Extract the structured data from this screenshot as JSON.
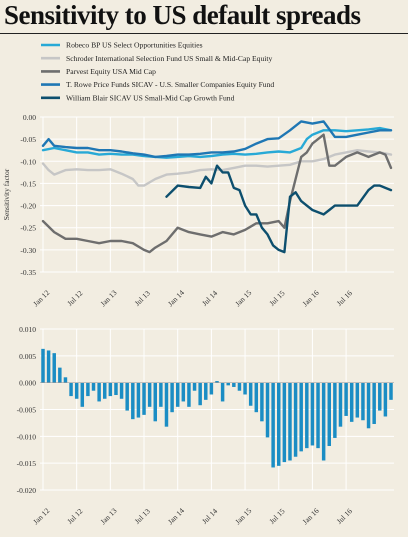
{
  "title": "Sensitivity to US default spreads",
  "colors": {
    "background": "#f2ede1",
    "grid": "#ffffff",
    "robeco": "#27a9d6",
    "schroder": "#c6c6c6",
    "parvest": "#6e6e6e",
    "trowe": "#1f77b4",
    "blair": "#0d4f6e",
    "bars": "#1b8dc4"
  },
  "chart_data": [
    {
      "type": "line",
      "ylabel": "Sensitivity factor",
      "ylim": [
        -0.35,
        0.0
      ],
      "yticks": [
        "0.00",
        "-0.05",
        "-0.10",
        "-0.15",
        "-0.20",
        "-0.25",
        "-0.30",
        "-0.35"
      ],
      "xticks": [
        "Jan 12",
        "Jul 12",
        "Jan 13",
        "Jul 13",
        "Jan 14",
        "Jul 14",
        "Jan 15",
        "Jul 15",
        "Jan 16",
        "Jul 16"
      ],
      "grid": true,
      "legend_position": "top-left",
      "series": [
        {
          "name": "Robeco BP US Select Opportunities Equities",
          "color_key": "robeco",
          "x": [
            0,
            2,
            4,
            6,
            8,
            10,
            12,
            14,
            16,
            18,
            20,
            22,
            24,
            26,
            28,
            30,
            32,
            34,
            36,
            38,
            40,
            42,
            44,
            46,
            47,
            48,
            50,
            52,
            54,
            56,
            58,
            60,
            62
          ],
          "y": [
            -0.075,
            -0.07,
            -0.075,
            -0.08,
            -0.08,
            -0.085,
            -0.083,
            -0.085,
            -0.085,
            -0.088,
            -0.09,
            -0.092,
            -0.09,
            -0.088,
            -0.09,
            -0.088,
            -0.085,
            -0.083,
            -0.085,
            -0.083,
            -0.08,
            -0.078,
            -0.08,
            -0.07,
            -0.05,
            -0.04,
            -0.03,
            -0.03,
            -0.032,
            -0.03,
            -0.028,
            -0.025,
            -0.03
          ]
        },
        {
          "name": "Schroder International Selection Fund US Small & Mid-Cap Equity",
          "color_key": "schroder",
          "x": [
            0,
            1,
            2,
            4,
            6,
            8,
            10,
            12,
            14,
            16,
            17,
            18,
            20,
            22,
            24,
            26,
            28,
            30,
            32,
            34,
            36,
            38,
            40,
            42,
            44,
            46,
            48,
            50,
            52,
            54,
            56,
            58,
            60,
            62
          ],
          "y": [
            -0.105,
            -0.12,
            -0.13,
            -0.12,
            -0.118,
            -0.12,
            -0.12,
            -0.118,
            -0.128,
            -0.14,
            -0.155,
            -0.155,
            -0.14,
            -0.13,
            -0.128,
            -0.125,
            -0.12,
            -0.118,
            -0.12,
            -0.115,
            -0.11,
            -0.11,
            -0.112,
            -0.11,
            -0.108,
            -0.1,
            -0.1,
            -0.095,
            -0.085,
            -0.08,
            -0.075,
            -0.078,
            -0.08,
            -0.085
          ]
        },
        {
          "name": "Parvest Equity USA Mid Cap",
          "color_key": "parvest",
          "x": [
            0,
            2,
            4,
            6,
            8,
            10,
            12,
            14,
            16,
            18,
            19,
            20,
            22,
            24,
            26,
            28,
            30,
            32,
            34,
            36,
            38,
            40,
            42,
            43,
            44,
            45,
            46,
            47,
            48,
            50,
            51,
            52,
            54,
            56,
            58,
            60,
            61,
            62
          ],
          "y": [
            -0.235,
            -0.26,
            -0.275,
            -0.275,
            -0.28,
            -0.285,
            -0.28,
            -0.28,
            -0.285,
            -0.3,
            -0.305,
            -0.295,
            -0.28,
            -0.25,
            -0.26,
            -0.265,
            -0.27,
            -0.26,
            -0.265,
            -0.255,
            -0.24,
            -0.24,
            -0.235,
            -0.25,
            -0.19,
            -0.14,
            -0.09,
            -0.08,
            -0.06,
            -0.04,
            -0.11,
            -0.11,
            -0.09,
            -0.08,
            -0.09,
            -0.08,
            -0.085,
            -0.115
          ]
        },
        {
          "name": "T. Rowe Price Funds SICAV - U.S. Smaller Companies Equity Fund",
          "color_key": "trowe",
          "x": [
            0,
            1,
            2,
            4,
            6,
            8,
            10,
            12,
            14,
            16,
            18,
            20,
            22,
            24,
            26,
            28,
            30,
            32,
            34,
            36,
            38,
            40,
            42,
            44,
            46,
            48,
            50,
            52,
            54,
            56,
            58,
            60,
            62
          ],
          "y": [
            -0.065,
            -0.05,
            -0.065,
            -0.068,
            -0.07,
            -0.07,
            -0.075,
            -0.075,
            -0.078,
            -0.082,
            -0.085,
            -0.09,
            -0.088,
            -0.085,
            -0.085,
            -0.083,
            -0.08,
            -0.08,
            -0.078,
            -0.072,
            -0.06,
            -0.05,
            -0.048,
            -0.03,
            -0.01,
            -0.015,
            -0.01,
            -0.045,
            -0.045,
            -0.04,
            -0.035,
            -0.03,
            -0.03
          ]
        },
        {
          "name": "William Blair SICAV US Small-Mid Cap Growth Fund",
          "color_key": "blair",
          "x": [
            22,
            24,
            26,
            28,
            29,
            30,
            31,
            32,
            33,
            34,
            35,
            36,
            37,
            38,
            39,
            40,
            41,
            42,
            43,
            44,
            45,
            46,
            47,
            48,
            50,
            51,
            52,
            54,
            56,
            58,
            59,
            60,
            61,
            62
          ],
          "y": [
            -0.18,
            -0.155,
            -0.158,
            -0.16,
            -0.135,
            -0.15,
            -0.11,
            -0.125,
            -0.125,
            -0.16,
            -0.165,
            -0.2,
            -0.22,
            -0.22,
            -0.25,
            -0.265,
            -0.29,
            -0.3,
            -0.305,
            -0.18,
            -0.17,
            -0.19,
            -0.2,
            -0.21,
            -0.22,
            -0.21,
            -0.2,
            -0.2,
            -0.2,
            -0.165,
            -0.155,
            -0.155,
            -0.16,
            -0.165
          ]
        }
      ]
    },
    {
      "type": "bar",
      "ylim": [
        -0.02,
        0.01
      ],
      "yticks": [
        "0.010",
        "0.005",
        "0.000",
        "-0.005",
        "-0.010",
        "-0.015",
        "-0.020"
      ],
      "xticks": [
        "Jan 12",
        "Jul 12",
        "Jan 13",
        "Jul 13",
        "Jan 14",
        "Jul 14",
        "Jan 15",
        "Jul 15",
        "Jan 16",
        "Jul 16"
      ],
      "grid": true,
      "values": [
        0.0063,
        0.006,
        0.0055,
        0.0028,
        0.001,
        -0.0025,
        -0.003,
        -0.0045,
        -0.0025,
        -0.0015,
        -0.0035,
        -0.003,
        -0.0025,
        -0.0023,
        -0.003,
        -0.0052,
        -0.0068,
        -0.0065,
        -0.006,
        -0.0045,
        -0.0072,
        -0.0045,
        -0.0082,
        -0.0055,
        -0.0045,
        -0.0035,
        -0.0045,
        -0.0015,
        -0.0042,
        -0.0032,
        -0.0022,
        0.0003,
        -0.0035,
        -0.0005,
        -0.0008,
        -0.0015,
        -0.0022,
        -0.0043,
        -0.0055,
        -0.0072,
        -0.0102,
        -0.0158,
        -0.0155,
        -0.0148,
        -0.0145,
        -0.0138,
        -0.0128,
        -0.0122,
        -0.0117,
        -0.0122,
        -0.0145,
        -0.0118,
        -0.0103,
        -0.0082,
        -0.0062,
        -0.0073,
        -0.0065,
        -0.007,
        -0.0085,
        -0.0077,
        -0.0052,
        -0.0063,
        -0.0032
      ]
    }
  ]
}
